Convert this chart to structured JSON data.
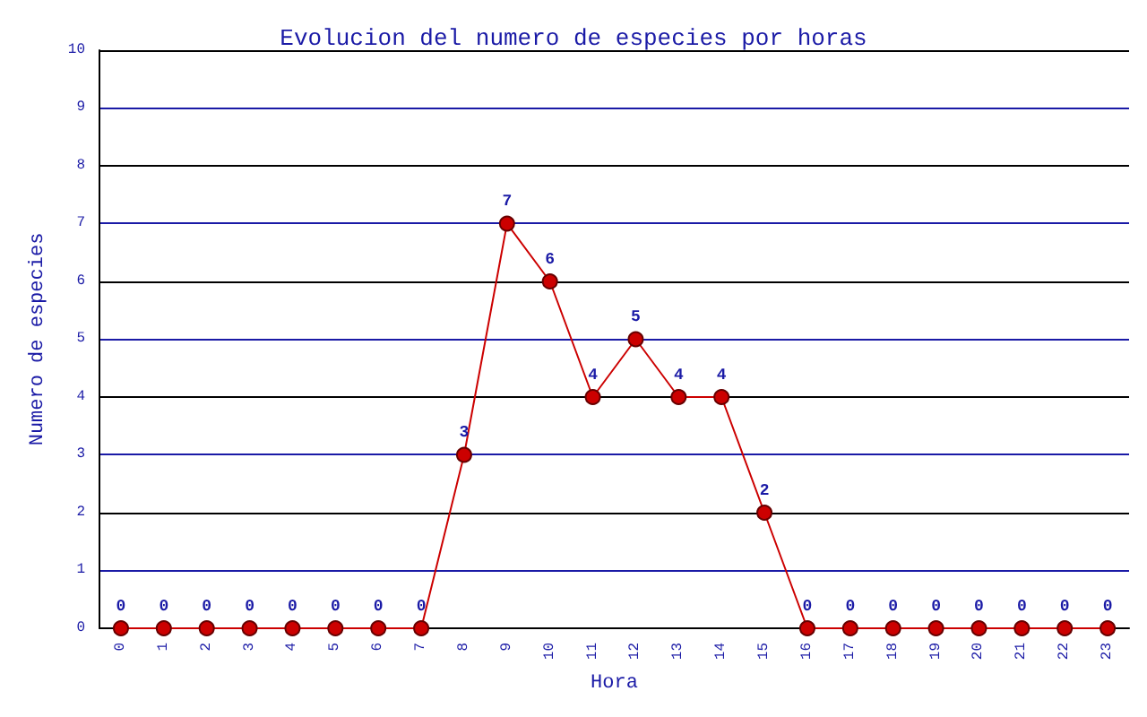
{
  "chart_data": {
    "type": "line",
    "title": "Evolucion del numero de especies por horas",
    "xlabel": "Hora",
    "ylabel": "Numero de especies",
    "categories": [
      "0",
      "1",
      "2",
      "3",
      "4",
      "5",
      "6",
      "7",
      "8",
      "9",
      "10",
      "11",
      "12",
      "13",
      "14",
      "15",
      "16",
      "17",
      "18",
      "19",
      "20",
      "21",
      "22",
      "23"
    ],
    "values": [
      0,
      0,
      0,
      0,
      0,
      0,
      0,
      0,
      3,
      7,
      6,
      4,
      5,
      4,
      4,
      2,
      0,
      0,
      0,
      0,
      0,
      0,
      0,
      0
    ],
    "color": "#cc0000",
    "marker": "circle",
    "data_labels": true,
    "grid": "y",
    "ylim": [
      0,
      10
    ],
    "yticks": [
      0,
      1,
      2,
      3,
      4,
      5,
      6,
      7,
      8,
      9,
      10
    ]
  }
}
